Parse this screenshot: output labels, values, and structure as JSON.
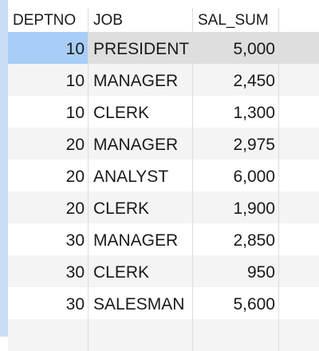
{
  "table": {
    "columns": [
      "DEPTNO",
      "JOB",
      "SAL_SUM"
    ],
    "rows": [
      {
        "deptno": "10",
        "job": "PRESIDENT",
        "sal_sum": "5,000",
        "selected": true
      },
      {
        "deptno": "10",
        "job": "MANAGER",
        "sal_sum": "2,450",
        "selected": false
      },
      {
        "deptno": "10",
        "job": "CLERK",
        "sal_sum": "1,300",
        "selected": false
      },
      {
        "deptno": "20",
        "job": "MANAGER",
        "sal_sum": "2,975",
        "selected": false
      },
      {
        "deptno": "20",
        "job": "ANALYST",
        "sal_sum": "6,000",
        "selected": false
      },
      {
        "deptno": "20",
        "job": "CLERK",
        "sal_sum": "1,900",
        "selected": false
      },
      {
        "deptno": "30",
        "job": "MANAGER",
        "sal_sum": "2,850",
        "selected": false
      },
      {
        "deptno": "30",
        "job": "CLERK",
        "sal_sum": "950",
        "selected": false
      },
      {
        "deptno": "30",
        "job": "SALESMAN",
        "sal_sum": "5,600",
        "selected": false
      }
    ],
    "colors": {
      "selected_cell": "#a8cdf6",
      "selected_row": "#dedede",
      "stripe": "#f4f4f4",
      "row_marker_bar": "#c9def5"
    }
  }
}
